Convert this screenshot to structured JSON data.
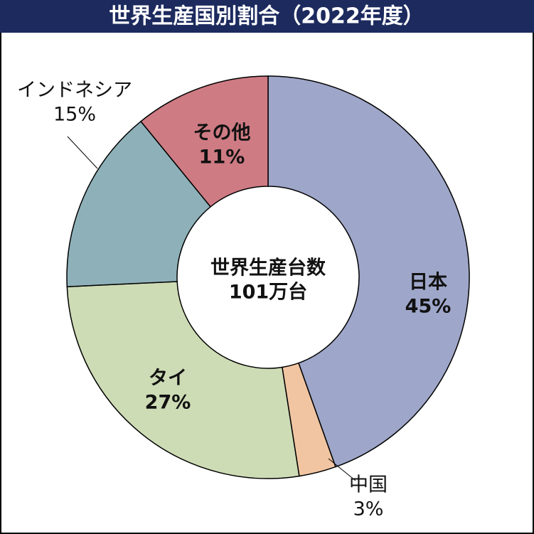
{
  "chart_data": {
    "type": "donut",
    "title": "世界生産国別割合（2022年度）",
    "center_label": [
      "世界生産台数",
      "101万台"
    ],
    "categories": [
      "日本",
      "中国",
      "タイ",
      "インドネシア",
      "その他"
    ],
    "values": [
      45,
      3,
      27,
      15,
      11
    ],
    "value_labels": [
      "45%",
      "3%",
      "27%",
      "15%",
      "11%"
    ],
    "colors": [
      "#9ea6c9",
      "#f1c5a2",
      "#cedcb6",
      "#8eb1b9",
      "#ce7b83"
    ]
  }
}
